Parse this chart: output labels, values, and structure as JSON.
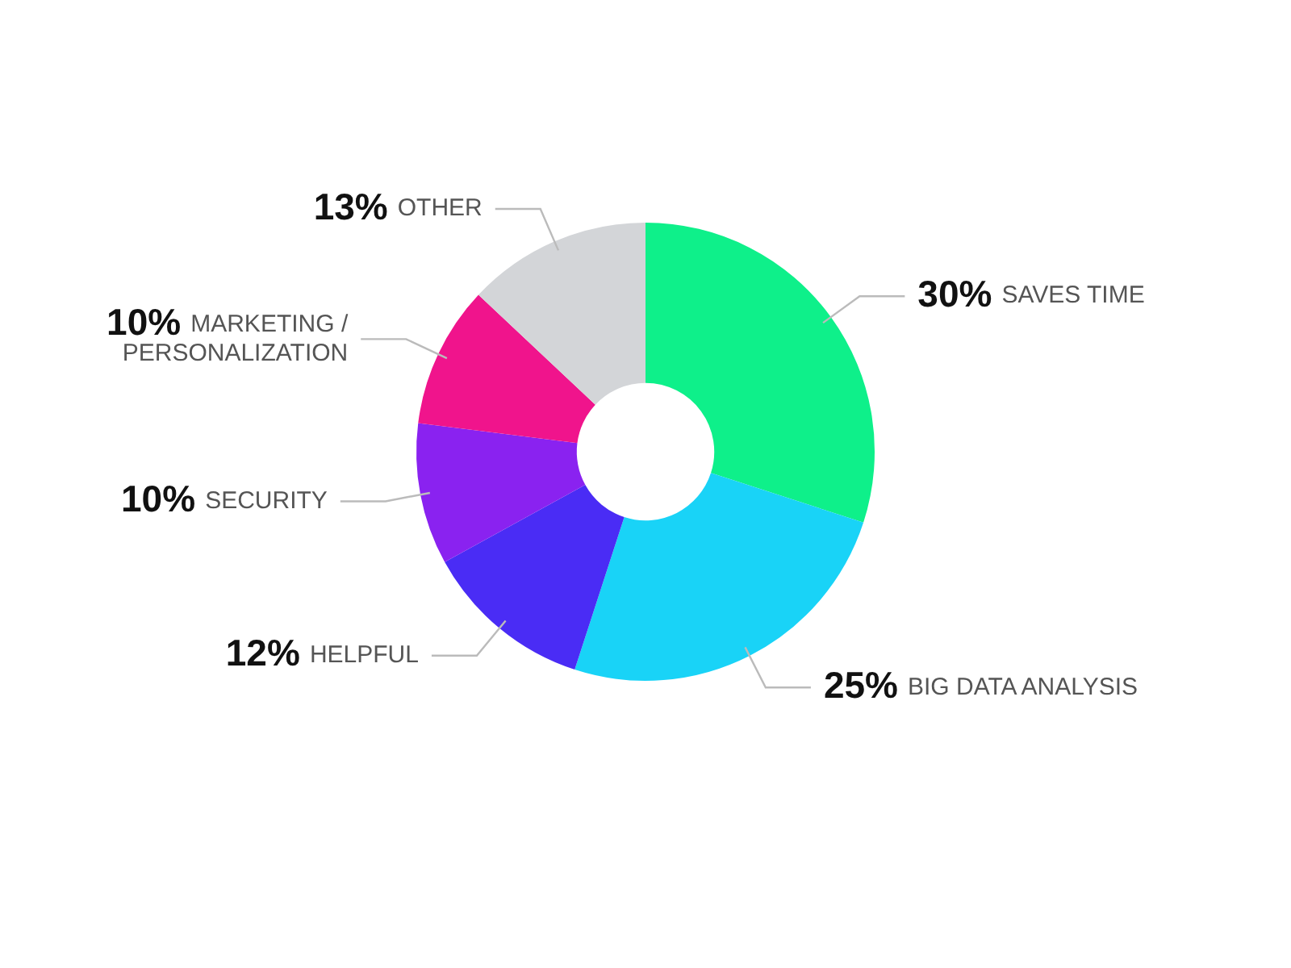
{
  "chart_data": {
    "type": "donut",
    "categories": [
      "SAVES TIME",
      "BIG DATA ANALYSIS",
      "HELPFUL",
      "SECURITY",
      "MARKETING / PERSONALIZATION",
      "OTHER"
    ],
    "values": [
      30,
      25,
      12,
      10,
      10,
      13
    ],
    "value_labels": [
      "30%",
      "25%",
      "12%",
      "10%",
      "10%",
      "13%"
    ],
    "colors": [
      "#0ef08a",
      "#19d3f7",
      "#4a2cf5",
      "#8a22f0",
      "#f0148c",
      "#d3d5d8"
    ],
    "legend": false
  }
}
